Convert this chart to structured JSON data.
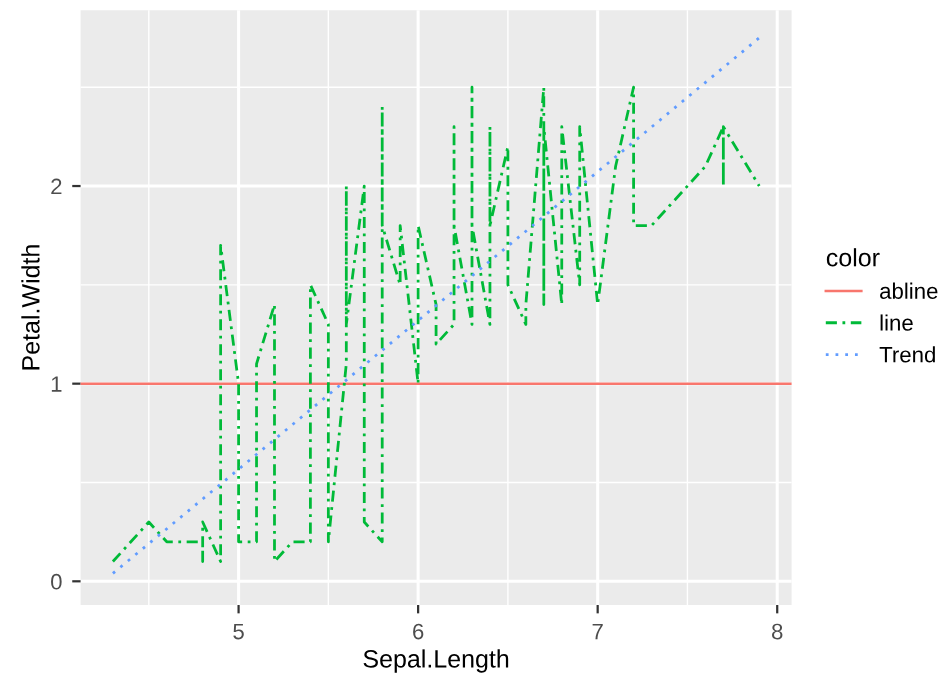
{
  "chart_data": {
    "type": "line",
    "xlabel": "Sepal.Length",
    "ylabel": "Petal.Width",
    "legend_title": "color",
    "legend": "right",
    "grid": true,
    "xlim": [
      4.12,
      8.08
    ],
    "ylim": [
      -0.12,
      2.89
    ],
    "xticks": [
      5,
      6,
      7,
      8
    ],
    "yticks": [
      0,
      1,
      2
    ],
    "ref_lines": [
      {
        "axis": "y",
        "value": 1,
        "label": "abline",
        "color": "#f8766d",
        "line_style": "solid"
      }
    ],
    "series": [
      {
        "name": "line",
        "color": "#00ba38",
        "line_style": "dashed",
        "x": [
          4.3,
          4.4,
          4.5,
          4.6,
          4.7,
          4.8,
          4.8,
          4.8,
          4.9,
          4.9,
          5.0,
          5.0,
          5.1,
          5.1,
          5.2,
          5.2,
          5.3,
          5.4,
          5.4,
          5.5,
          5.5,
          5.6,
          5.6,
          5.6,
          5.7,
          5.7,
          5.8,
          5.8,
          5.8,
          5.9,
          5.9,
          6.0,
          6.0,
          6.1,
          6.1,
          6.2,
          6.2,
          6.2,
          6.3,
          6.3,
          6.3,
          6.4,
          6.4,
          6.4,
          6.5,
          6.5,
          6.6,
          6.6,
          6.7,
          6.7,
          6.7,
          6.8,
          6.8,
          6.9,
          6.9,
          7.0,
          7.1,
          7.2,
          7.2,
          7.3,
          7.4,
          7.6,
          7.7,
          7.7,
          7.7,
          7.9
        ],
        "values": [
          0.1,
          0.2,
          0.3,
          0.2,
          0.2,
          0.2,
          0.1,
          0.3,
          0.1,
          1.7,
          1.0,
          0.2,
          0.2,
          1.1,
          1.4,
          0.1,
          0.2,
          0.2,
          1.5,
          1.3,
          0.2,
          1.1,
          2.0,
          1.3,
          2.0,
          0.3,
          0.2,
          2.4,
          1.8,
          1.5,
          1.8,
          1.0,
          1.8,
          1.4,
          1.2,
          1.3,
          2.3,
          1.8,
          1.3,
          2.5,
          1.8,
          1.3,
          2.3,
          1.8,
          2.2,
          1.5,
          1.3,
          1.4,
          2.5,
          1.4,
          2.3,
          1.4,
          2.3,
          1.5,
          2.3,
          1.4,
          2.1,
          2.5,
          1.8,
          1.8,
          1.9,
          2.1,
          2.3,
          2.0,
          2.3,
          2.0
        ]
      },
      {
        "name": "Trend",
        "color": "#619cff",
        "line_style": "dotted",
        "x": [
          4.3,
          7.9
        ],
        "values": [
          0.04,
          2.75
        ]
      }
    ]
  }
}
